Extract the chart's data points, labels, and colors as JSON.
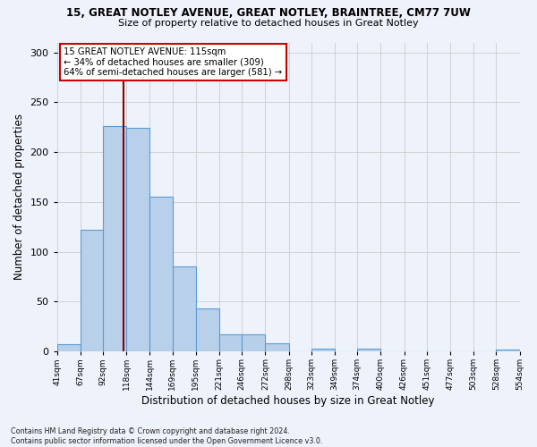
{
  "title_line1": "15, GREAT NOTLEY AVENUE, GREAT NOTLEY, BRAINTREE, CM77 7UW",
  "title_line2": "Size of property relative to detached houses in Great Notley",
  "xlabel": "Distribution of detached houses by size in Great Notley",
  "ylabel": "Number of detached properties",
  "footnote": "Contains HM Land Registry data © Crown copyright and database right 2024.\nContains public sector information licensed under the Open Government Licence v3.0.",
  "bin_edges": [
    41,
    67,
    92,
    118,
    144,
    169,
    195,
    221,
    246,
    272,
    298,
    323,
    349,
    374,
    400,
    426,
    451,
    477,
    503,
    528,
    554
  ],
  "bin_heights": [
    7,
    122,
    226,
    224,
    155,
    85,
    43,
    17,
    17,
    8,
    0,
    3,
    0,
    3,
    0,
    0,
    0,
    0,
    0,
    2
  ],
  "property_size": 115,
  "annotation_text": "15 GREAT NOTLEY AVENUE: 115sqm\n← 34% of detached houses are smaller (309)\n64% of semi-detached houses are larger (581) →",
  "bar_color": "#b8d0ea",
  "bar_edge_color": "#5b9bd5",
  "vline_color": "#8b0000",
  "annotation_box_color": "#ffffff",
  "annotation_box_edge_color": "#cc0000",
  "background_color": "#eef2fb",
  "ylim": [
    0,
    310
  ],
  "yticks": [
    0,
    50,
    100,
    150,
    200,
    250,
    300
  ],
  "grid_color": "#cccccc"
}
